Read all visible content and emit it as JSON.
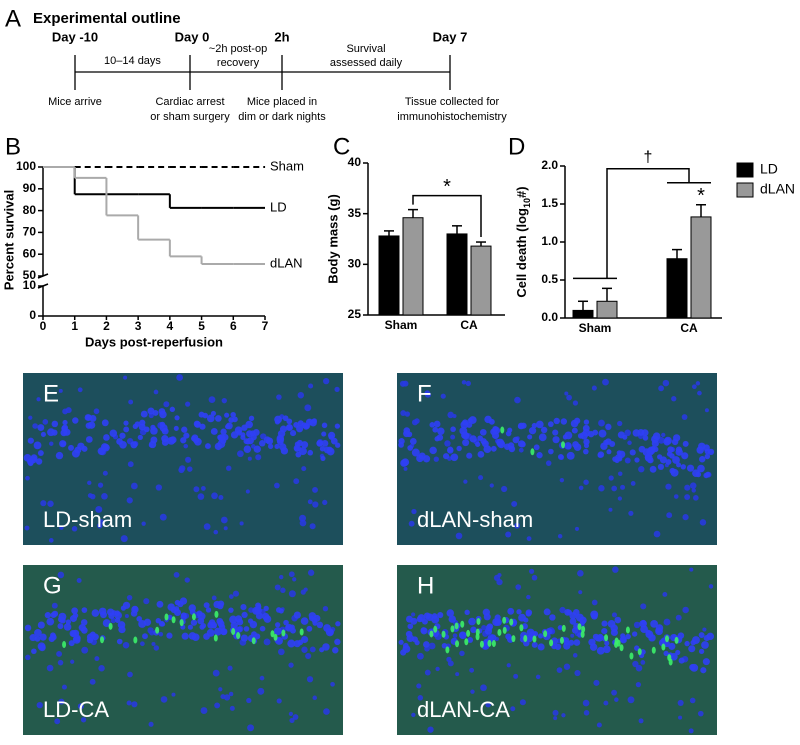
{
  "panel_a": {
    "label": "A",
    "title": "Experimental outline",
    "timepoints": [
      {
        "label": "Day -10",
        "below": [
          "Mice arrive"
        ]
      },
      {
        "label": "Day 0",
        "below": [
          "Cardiac arrest",
          "or sham surgery"
        ]
      },
      {
        "label": "2h",
        "below": [
          "Mice placed in",
          "dim or dark nights"
        ]
      },
      {
        "label": "Day 7",
        "below": [
          "Tissue collected for",
          "immunohistochemistry"
        ]
      }
    ],
    "intervals": [
      [
        "10–14 days"
      ],
      [
        "~2h post-op",
        "recovery"
      ],
      [
        "Survival",
        "assessed daily"
      ]
    ]
  },
  "chart_data": [
    {
      "panel": "B",
      "type": "line",
      "step": true,
      "x": [
        0,
        1,
        2,
        3,
        4,
        5,
        6,
        7
      ],
      "series": [
        {
          "name": "Sham",
          "color": "#000000",
          "dashed": true,
          "values": [
            100,
            100,
            100,
            100,
            100,
            100,
            100,
            100
          ]
        },
        {
          "name": "LD",
          "color": "#000000",
          "values": [
            100,
            87.5,
            87.5,
            87.5,
            81.25,
            81.25,
            81.25,
            81.25
          ]
        },
        {
          "name": "dLAN",
          "color": "#aaaaaa",
          "values": [
            100,
            95,
            77.8,
            66.7,
            59,
            55.5,
            55.5,
            55.5
          ]
        }
      ],
      "xlabel": "Days post-reperfusion",
      "ylabel": "Percent survival",
      "xlim": [
        0,
        7
      ],
      "xticks": [
        0,
        1,
        2,
        3,
        4,
        5,
        6,
        7
      ],
      "ylim": [
        50,
        100
      ],
      "yticks": [
        50,
        60,
        70,
        80,
        90,
        100
      ],
      "ylim_lower": [
        0,
        10
      ],
      "yticks_lower": [
        0,
        10
      ]
    },
    {
      "panel": "C",
      "type": "bar",
      "categories": [
        "Sham",
        "CA"
      ],
      "series": [
        {
          "color": "#000000",
          "values": [
            32.8,
            33.0
          ],
          "errors": [
            0.5,
            0.8
          ]
        },
        {
          "color": "#999999",
          "values": [
            34.6,
            31.8
          ],
          "errors": [
            0.8,
            0.4
          ]
        }
      ],
      "ylabel": "Body mass (g)",
      "ylim": [
        25,
        40
      ],
      "yticks": [
        25,
        30,
        35,
        40
      ],
      "annotations": [
        "*"
      ]
    },
    {
      "panel": "D",
      "type": "bar",
      "categories": [
        "Sham",
        "CA"
      ],
      "series": [
        {
          "name": "LD",
          "color": "#000000",
          "values": [
            0.1,
            0.78
          ],
          "errors": [
            0.12,
            0.12
          ]
        },
        {
          "name": "dLAN",
          "color": "#999999",
          "values": [
            0.22,
            1.33
          ],
          "errors": [
            0.17,
            0.16
          ]
        }
      ],
      "ylabel": {
        "text": "Cell death (log",
        "sub": "10",
        "tail": "#)"
      },
      "ylim": [
        0,
        2
      ],
      "yticks": [
        {
          "value": 0,
          "label": "0.0"
        },
        0.5,
        {
          "value": 1,
          "label": "1.0"
        },
        1.5,
        {
          "value": 2,
          "label": "2.0"
        }
      ],
      "legend": "upper right",
      "annotations": [
        "†",
        "*"
      ]
    }
  ],
  "images": [
    {
      "label": "E",
      "caption": "LD-sham"
    },
    {
      "label": "F",
      "caption": "dLAN-sham"
    },
    {
      "label": "G",
      "caption": "LD-CA"
    },
    {
      "label": "H",
      "caption": "dLAN-CA"
    }
  ]
}
